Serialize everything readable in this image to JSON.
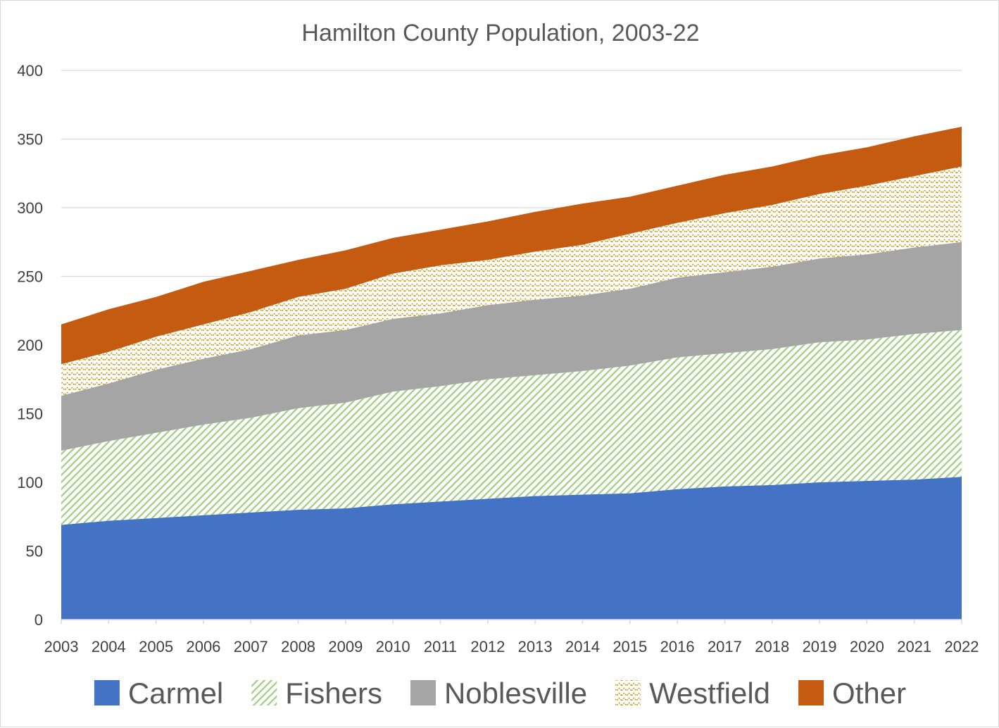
{
  "chart_data": {
    "type": "area",
    "stacked": true,
    "title": "Hamilton County Population, 2003-22",
    "xlabel": "",
    "ylabel": "",
    "ylim": [
      0,
      400
    ],
    "yticks": [
      0,
      50,
      100,
      150,
      200,
      250,
      300,
      350,
      400
    ],
    "grid": "horizontal",
    "legend_position": "bottom",
    "categories": [
      "2003",
      "2004",
      "2005",
      "2006",
      "2007",
      "2008",
      "2009",
      "2010",
      "2011",
      "2012",
      "2013",
      "2014",
      "2015",
      "2016",
      "2017",
      "2018",
      "2019",
      "2020",
      "2021",
      "2022"
    ],
    "series": [
      {
        "name": "Carmel",
        "color": "#4472c4",
        "pattern": "solid",
        "values": [
          69,
          72,
          74,
          76,
          78,
          80,
          81,
          84,
          86,
          88,
          90,
          91,
          92,
          95,
          97,
          98,
          100,
          101,
          102,
          104
        ]
      },
      {
        "name": "Fishers",
        "color": "#70ad47",
        "pattern": "diagonal-stripes",
        "values": [
          54,
          58,
          62,
          66,
          69,
          74,
          77,
          82,
          84,
          87,
          88,
          90,
          93,
          96,
          97,
          99,
          102,
          103,
          106,
          107
        ]
      },
      {
        "name": "Noblesville",
        "color": "#a5a5a5",
        "pattern": "solid",
        "values": [
          40,
          42,
          46,
          48,
          50,
          53,
          53,
          53,
          53,
          54,
          55,
          55,
          56,
          58,
          59,
          60,
          61,
          62,
          63,
          64
        ]
      },
      {
        "name": "Westfield",
        "color": "#bf8f00",
        "pattern": "zigzag-dots",
        "values": [
          23,
          23,
          24,
          25,
          27,
          28,
          30,
          33,
          35,
          33,
          35,
          37,
          40,
          40,
          43,
          45,
          47,
          50,
          52,
          55
        ]
      },
      {
        "name": "Other",
        "color": "#c55a11",
        "pattern": "solid",
        "values": [
          29,
          31,
          29,
          31,
          30,
          27,
          28,
          26,
          26,
          28,
          29,
          30,
          27,
          27,
          28,
          28,
          28,
          28,
          29,
          29
        ]
      }
    ]
  }
}
